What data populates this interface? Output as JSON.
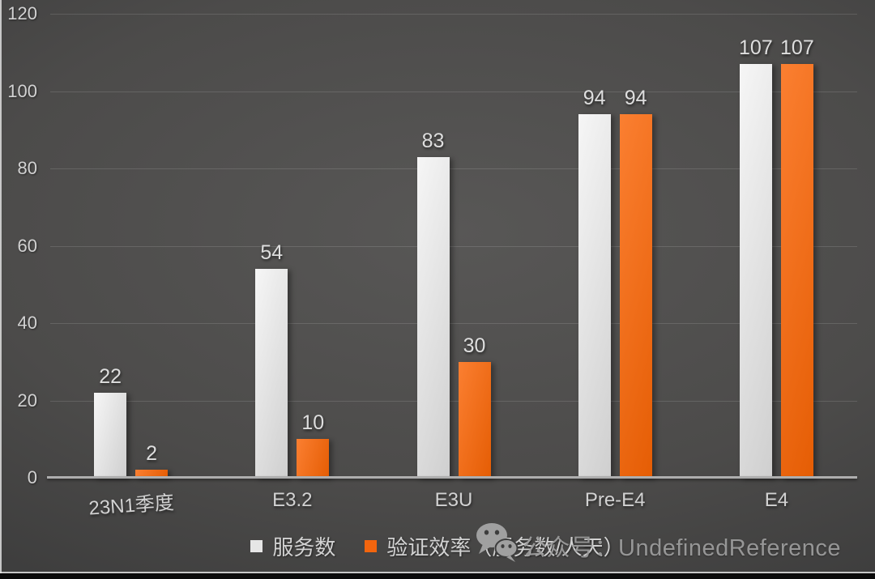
{
  "chart_data": {
    "type": "bar",
    "title": "",
    "xlabel": "",
    "ylabel": "",
    "categories": [
      "23N1季度",
      "E3.2",
      "E3U",
      "Pre-E4",
      "E4"
    ],
    "series": [
      {
        "name": "服务数",
        "values": [
          22,
          54,
          83,
          94,
          107
        ],
        "color": "#e6e6e6",
        "gradient": [
          "#f6f6f6",
          "#cfcfcf"
        ]
      },
      {
        "name": "验证效率（服务数/人天）",
        "values": [
          2,
          10,
          30,
          94,
          107
        ],
        "color": "#f3650e",
        "gradient": [
          "#fb7f31",
          "#e55d04"
        ]
      }
    ],
    "ylim": [
      0,
      120
    ],
    "yticks": [
      0,
      20,
      40,
      60,
      80,
      100,
      120
    ],
    "grid": true,
    "data_labels": true,
    "legend_position": "bottom"
  },
  "watermark": {
    "icon": "wechat-icon",
    "text": "公众号：UndefinedReference"
  },
  "theme": {
    "background_dark": "#2c2c2c",
    "background_light": "#585756",
    "text_color": "#d2d2d2",
    "gridline_color": "rgba(255,255,255,0.13)",
    "axis_line_color": "#aeaeae",
    "watermark_color": "#9b9b9b",
    "bottom_strip_color": "#0b0b0b"
  }
}
